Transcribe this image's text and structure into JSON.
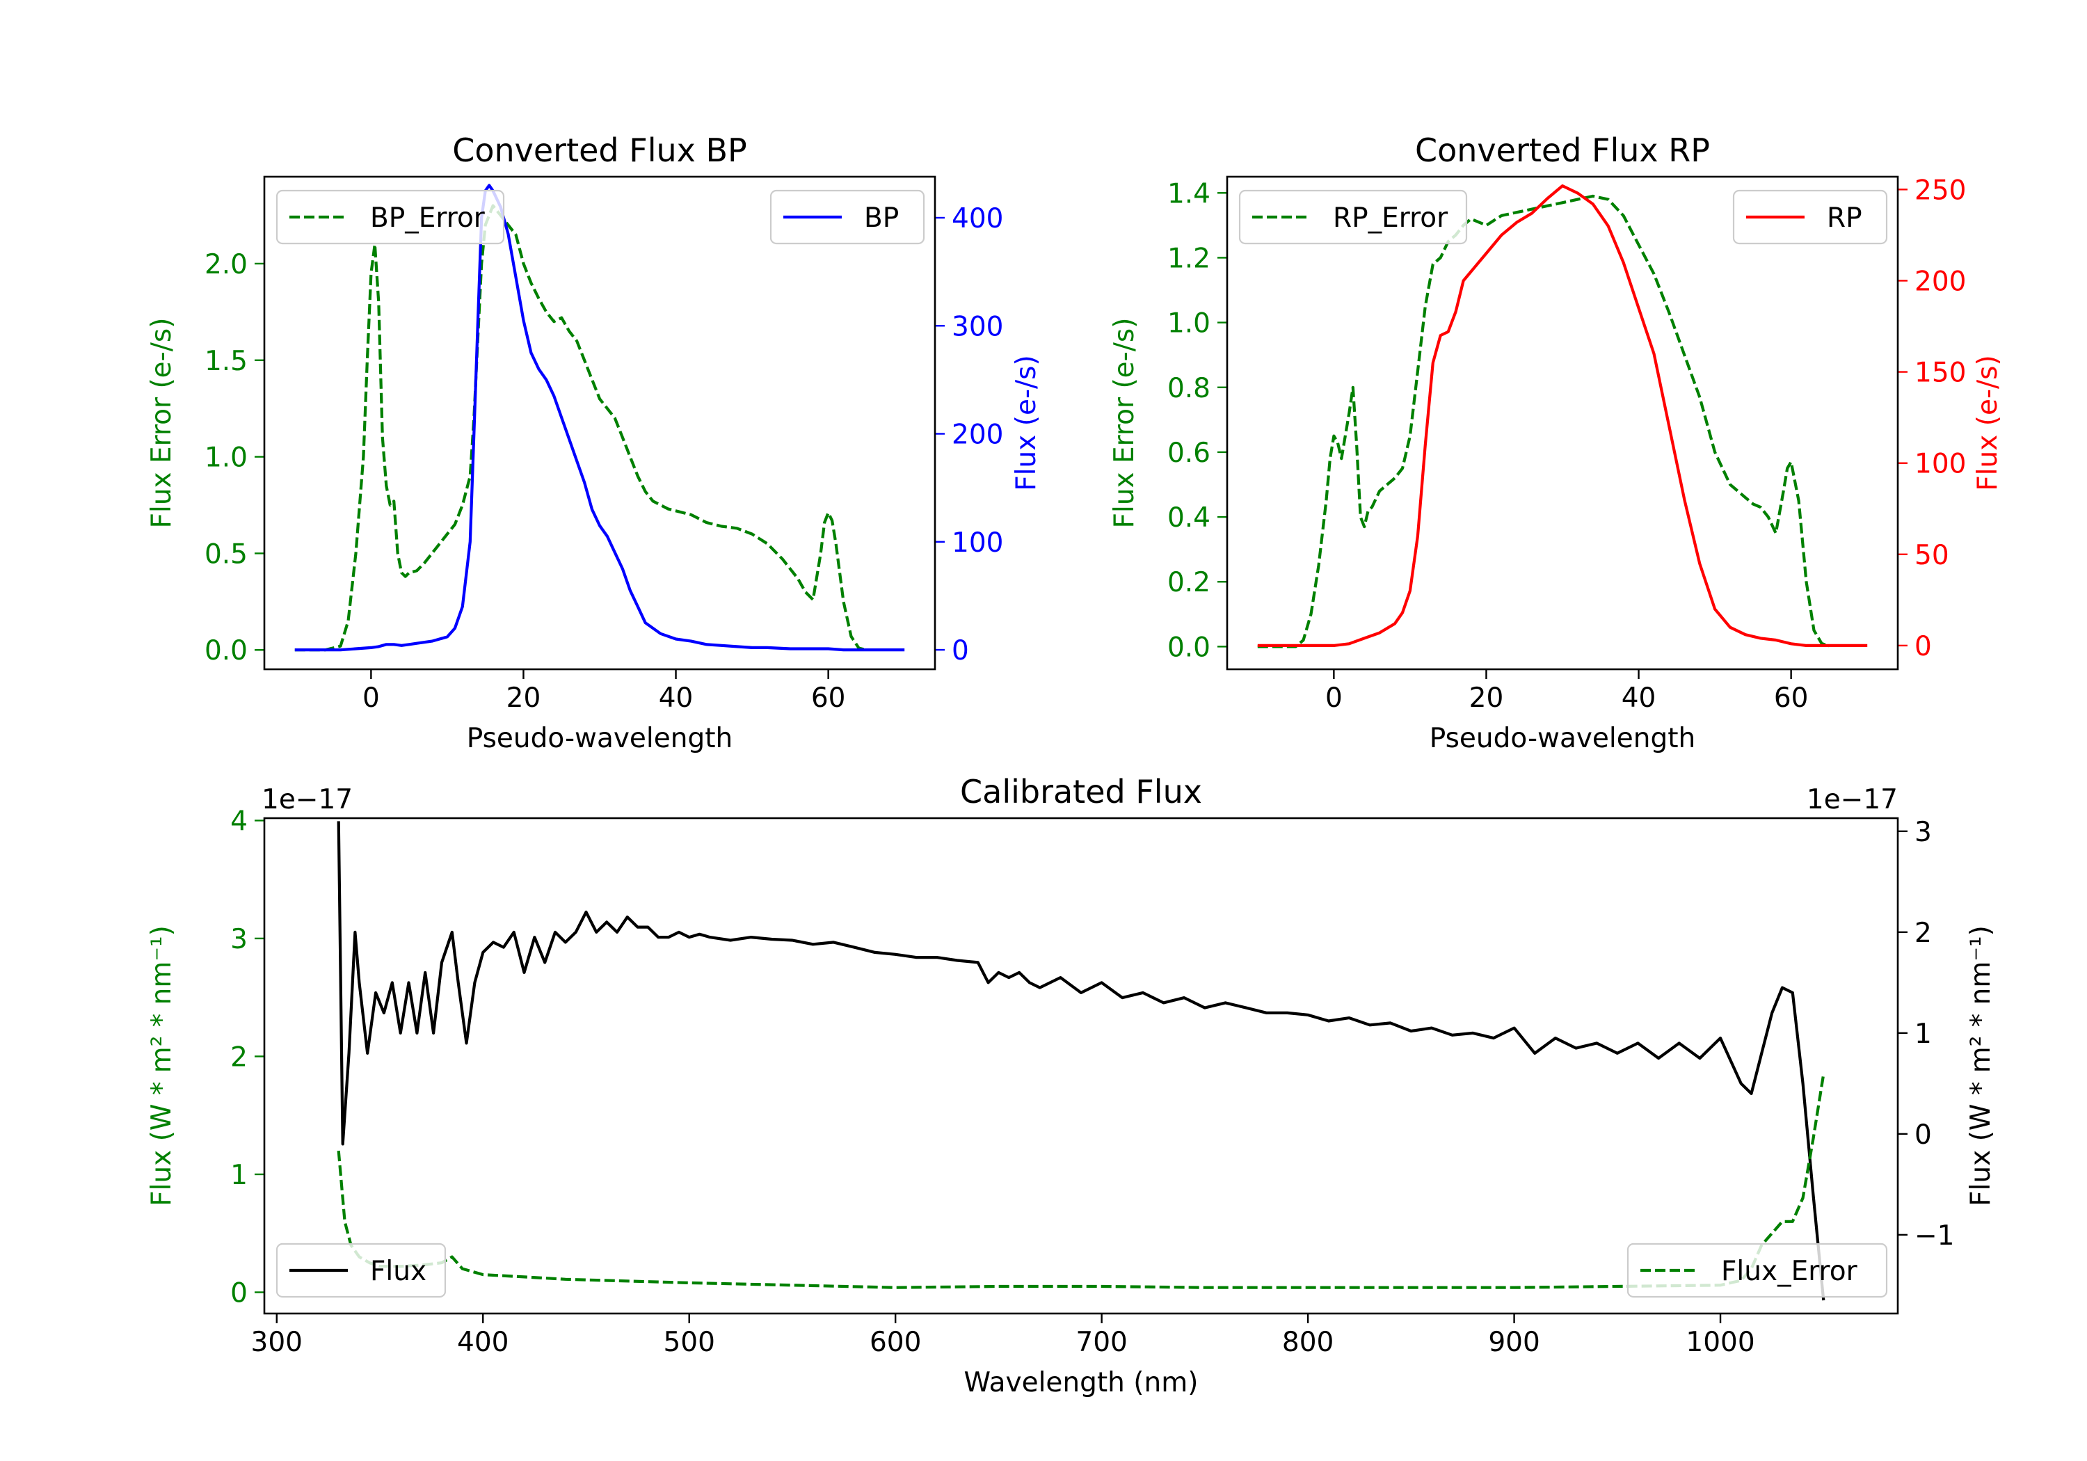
{
  "colors": {
    "green": "#008000",
    "blue": "#0000ff",
    "red": "#ff0000",
    "black": "#000000"
  },
  "chart_data": [
    {
      "id": "bp",
      "type": "line",
      "title": "Converted Flux BP",
      "xlabel": "Pseudo-wavelength",
      "ylabel_left": "Flux Error (e-/s)",
      "ylabel_right": "Flux (e-/s)",
      "xlim": [
        -14,
        74
      ],
      "ylim_left": [
        -0.1,
        2.45
      ],
      "ylim_right": [
        -18,
        438
      ],
      "xticks": [
        0,
        20,
        40,
        60
      ],
      "yticks_left": [
        0.0,
        0.5,
        1.0,
        1.5,
        2.0
      ],
      "ytick_labels_left": [
        "0.0",
        "0.5",
        "1.0",
        "1.5",
        "2.0"
      ],
      "yticks_right": [
        0,
        100,
        200,
        300,
        400
      ],
      "ytick_labels_right": [
        "0",
        "100",
        "200",
        "300",
        "400"
      ],
      "legend_left": "BP_Error",
      "legend_right": "BP",
      "series": [
        {
          "name": "BP_Error",
          "axis": "left",
          "color": "#008000",
          "dash": true,
          "x": [
            -10,
            -6,
            -4,
            -3,
            -2,
            -1,
            -0.5,
            0,
            0.5,
            1,
            1.5,
            2,
            2.5,
            3,
            3.5,
            4,
            4.5,
            5,
            6,
            7,
            8,
            9,
            10,
            11,
            12,
            13,
            13.5,
            14,
            14.5,
            15,
            16,
            17,
            18,
            19,
            20,
            21,
            22,
            23,
            24,
            25,
            26,
            27,
            28,
            29,
            30,
            31,
            32,
            33,
            34,
            35,
            36,
            37,
            38,
            39,
            40,
            42,
            44,
            46,
            48,
            50,
            52,
            54,
            56,
            57,
            58,
            59,
            59.5,
            60,
            60.5,
            61,
            62,
            63,
            64,
            65
          ],
          "y": [
            0,
            0,
            0.02,
            0.15,
            0.5,
            1.0,
            1.5,
            1.95,
            2.1,
            1.8,
            1.1,
            0.85,
            0.75,
            0.77,
            0.5,
            0.4,
            0.38,
            0.4,
            0.41,
            0.45,
            0.5,
            0.55,
            0.6,
            0.65,
            0.75,
            0.9,
            1.2,
            1.6,
            2.0,
            2.2,
            2.3,
            2.25,
            2.2,
            2.15,
            2.0,
            1.9,
            1.82,
            1.75,
            1.7,
            1.72,
            1.65,
            1.6,
            1.5,
            1.4,
            1.3,
            1.25,
            1.2,
            1.1,
            1.0,
            0.9,
            0.82,
            0.77,
            0.75,
            0.73,
            0.72,
            0.7,
            0.66,
            0.64,
            0.63,
            0.6,
            0.55,
            0.47,
            0.37,
            0.3,
            0.26,
            0.5,
            0.66,
            0.71,
            0.67,
            0.55,
            0.25,
            0.07,
            0.01,
            0
          ]
        },
        {
          "name": "BP",
          "axis": "right",
          "color": "#0000ff",
          "dash": false,
          "x": [
            -10,
            -4,
            -2,
            0,
            1,
            2,
            3,
            4,
            5,
            6,
            8,
            10,
            11,
            12,
            13,
            13.5,
            14,
            14.5,
            15,
            15.5,
            16,
            17,
            18,
            19,
            20,
            21,
            22,
            23,
            24,
            25,
            26,
            27,
            28,
            29,
            30,
            31,
            32,
            33,
            34,
            35,
            36,
            38,
            40,
            42,
            44,
            46,
            48,
            50,
            52,
            55,
            58,
            60,
            62,
            64,
            66,
            70
          ],
          "y": [
            0,
            0,
            1,
            2,
            3,
            5,
            5,
            4,
            5,
            6,
            8,
            12,
            20,
            40,
            100,
            200,
            300,
            400,
            425,
            430,
            425,
            410,
            385,
            345,
            305,
            275,
            260,
            250,
            235,
            215,
            195,
            175,
            155,
            130,
            115,
            105,
            90,
            75,
            55,
            40,
            25,
            15,
            10,
            8,
            5,
            4,
            3,
            2,
            2,
            1,
            1,
            1,
            0,
            0,
            0,
            0
          ]
        }
      ]
    },
    {
      "id": "rp",
      "type": "line",
      "title": "Converted Flux RP",
      "xlabel": "Pseudo-wavelength",
      "ylabel_left": "Flux Error (e-/s)",
      "ylabel_right": "Flux (e-/s)",
      "xlim": [
        -14,
        74
      ],
      "ylim_left": [
        -0.07,
        1.45
      ],
      "ylim_right": [
        -13,
        257
      ],
      "xticks": [
        0,
        20,
        40,
        60
      ],
      "yticks_left": [
        0.0,
        0.2,
        0.4,
        0.6,
        0.8,
        1.0,
        1.2,
        1.4
      ],
      "ytick_labels_left": [
        "0.0",
        "0.2",
        "0.4",
        "0.6",
        "0.8",
        "1.0",
        "1.2",
        "1.4"
      ],
      "yticks_right": [
        0,
        50,
        100,
        150,
        200,
        250
      ],
      "ytick_labels_right": [
        "0",
        "50",
        "100",
        "150",
        "200",
        "250"
      ],
      "legend_left": "RP_Error",
      "legend_right": "RP",
      "series": [
        {
          "name": "RP_Error",
          "axis": "left",
          "color": "#008000",
          "dash": true,
          "x": [
            -10,
            -5,
            -4,
            -3,
            -2,
            -1,
            -0.5,
            0,
            0.5,
            1,
            1.5,
            2,
            2.5,
            3,
            3.5,
            4,
            4.5,
            5,
            6,
            7,
            8,
            9,
            10,
            11,
            12,
            13,
            14,
            15,
            16,
            17,
            18,
            20,
            22,
            24,
            26,
            28,
            30,
            32,
            34,
            36,
            38,
            40,
            42,
            44,
            46,
            48,
            50,
            52,
            54,
            55,
            56,
            57,
            58,
            59,
            59.5,
            60,
            61,
            62,
            63,
            64,
            65
          ],
          "y": [
            0,
            0,
            0.02,
            0.1,
            0.25,
            0.45,
            0.58,
            0.65,
            0.63,
            0.58,
            0.65,
            0.72,
            0.8,
            0.62,
            0.4,
            0.37,
            0.42,
            0.43,
            0.48,
            0.5,
            0.52,
            0.55,
            0.65,
            0.85,
            1.05,
            1.18,
            1.2,
            1.25,
            1.27,
            1.3,
            1.32,
            1.3,
            1.33,
            1.34,
            1.35,
            1.36,
            1.37,
            1.38,
            1.39,
            1.38,
            1.33,
            1.24,
            1.15,
            1.03,
            0.9,
            0.77,
            0.6,
            0.5,
            0.46,
            0.44,
            0.43,
            0.4,
            0.35,
            0.48,
            0.55,
            0.57,
            0.45,
            0.2,
            0.05,
            0.01,
            0
          ]
        },
        {
          "name": "RP",
          "axis": "right",
          "color": "#ff0000",
          "dash": false,
          "x": [
            -10,
            -2,
            0,
            2,
            4,
            6,
            8,
            9,
            10,
            11,
            12,
            13,
            14,
            15,
            16,
            17,
            18,
            20,
            22,
            24,
            26,
            28,
            30,
            32,
            34,
            36,
            38,
            40,
            42,
            44,
            46,
            48,
            50,
            52,
            54,
            56,
            58,
            60,
            62,
            65,
            70
          ],
          "y": [
            0,
            0,
            0,
            1,
            4,
            7,
            12,
            18,
            30,
            60,
            110,
            155,
            170,
            172,
            183,
            200,
            205,
            215,
            225,
            232,
            237,
            245,
            252,
            248,
            242,
            230,
            210,
            185,
            160,
            120,
            80,
            45,
            20,
            10,
            6,
            4,
            3,
            1,
            0,
            0,
            0
          ]
        }
      ]
    },
    {
      "id": "calibrated",
      "type": "line",
      "title": "Calibrated Flux",
      "xlabel": "Wavelength (nm)",
      "ylabel_left": "Flux (W * m² * nm⁻¹)",
      "ylabel_right": "Flux (W * m² * nm⁻¹)",
      "offset_left": "1e−17",
      "offset_right": "1e−17",
      "xlim": [
        294,
        1086
      ],
      "ylim_left": [
        -0.18,
        4.02
      ],
      "ylim_right": [
        -1.78,
        3.13
      ],
      "xticks": [
        300,
        400,
        500,
        600,
        700,
        800,
        900,
        1000
      ],
      "yticks_left": [
        0,
        1,
        2,
        3,
        4
      ],
      "ytick_labels_left": [
        "0",
        "1",
        "2",
        "3",
        "4"
      ],
      "yticks_right": [
        -1,
        0,
        1,
        2,
        3
      ],
      "ytick_labels_right": [
        "−1",
        "0",
        "1",
        "2",
        "3"
      ],
      "legend_left": "Flux",
      "legend_right": "Flux_Error",
      "series": [
        {
          "name": "Flux",
          "axis": "right",
          "color": "#000000",
          "dash": false,
          "x": [
            330,
            332,
            335,
            338,
            340,
            344,
            348,
            352,
            356,
            360,
            364,
            368,
            372,
            376,
            380,
            385,
            388,
            392,
            396,
            400,
            405,
            410,
            415,
            420,
            425,
            430,
            435,
            440,
            445,
            450,
            455,
            460,
            465,
            470,
            475,
            480,
            485,
            490,
            495,
            500,
            505,
            510,
            520,
            530,
            540,
            550,
            560,
            570,
            580,
            590,
            600,
            610,
            620,
            630,
            640,
            645,
            650,
            655,
            660,
            665,
            670,
            680,
            690,
            700,
            710,
            720,
            730,
            740,
            750,
            760,
            770,
            780,
            790,
            800,
            810,
            820,
            830,
            840,
            850,
            860,
            870,
            880,
            890,
            900,
            910,
            920,
            930,
            940,
            950,
            960,
            970,
            980,
            990,
            1000,
            1010,
            1015,
            1020,
            1025,
            1030,
            1035,
            1040,
            1045,
            1050
          ],
          "y": [
            3.1,
            -0.1,
            0.8,
            2.0,
            1.5,
            0.8,
            1.4,
            1.2,
            1.5,
            1.0,
            1.5,
            1.0,
            1.6,
            1.0,
            1.7,
            2.0,
            1.5,
            0.9,
            1.5,
            1.8,
            1.9,
            1.85,
            2.0,
            1.6,
            1.95,
            1.7,
            2.0,
            1.9,
            2.0,
            2.2,
            2.0,
            2.1,
            2.0,
            2.15,
            2.05,
            2.05,
            1.95,
            1.95,
            2.0,
            1.95,
            1.98,
            1.95,
            1.92,
            1.95,
            1.93,
            1.92,
            1.88,
            1.9,
            1.85,
            1.8,
            1.78,
            1.75,
            1.75,
            1.72,
            1.7,
            1.5,
            1.6,
            1.55,
            1.6,
            1.5,
            1.45,
            1.55,
            1.4,
            1.5,
            1.35,
            1.4,
            1.3,
            1.35,
            1.25,
            1.3,
            1.25,
            1.2,
            1.2,
            1.18,
            1.12,
            1.15,
            1.08,
            1.1,
            1.02,
            1.05,
            0.98,
            1.0,
            0.95,
            1.05,
            0.8,
            0.95,
            0.85,
            0.9,
            0.8,
            0.9,
            0.75,
            0.9,
            0.75,
            0.95,
            0.5,
            0.4,
            0.8,
            1.2,
            1.45,
            1.4,
            0.5,
            -0.6,
            -1.65
          ]
        },
        {
          "name": "Flux_Error",
          "axis": "left",
          "color": "#008000",
          "dash": true,
          "x": [
            330,
            333,
            336,
            340,
            345,
            350,
            360,
            370,
            380,
            385,
            390,
            400,
            420,
            440,
            460,
            480,
            500,
            550,
            600,
            650,
            700,
            750,
            800,
            850,
            900,
            950,
            1000,
            1010,
            1015,
            1020,
            1025,
            1030,
            1035,
            1040,
            1045,
            1050
          ],
          "y": [
            1.2,
            0.6,
            0.4,
            0.3,
            0.25,
            0.22,
            0.22,
            0.23,
            0.25,
            0.3,
            0.2,
            0.15,
            0.13,
            0.11,
            0.1,
            0.09,
            0.08,
            0.06,
            0.04,
            0.05,
            0.05,
            0.04,
            0.04,
            0.04,
            0.04,
            0.05,
            0.06,
            0.1,
            0.2,
            0.4,
            0.5,
            0.6,
            0.6,
            0.8,
            1.3,
            1.85
          ]
        }
      ]
    }
  ]
}
